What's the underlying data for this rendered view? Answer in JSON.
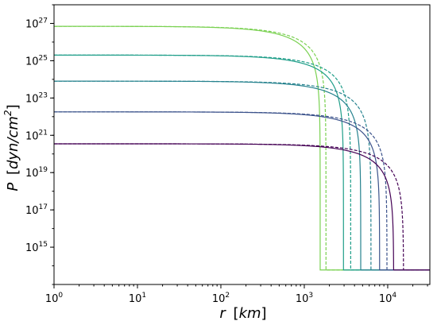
{
  "chart_data": {
    "type": "line",
    "xlabel_parts": [
      "r",
      "[",
      "km",
      "]"
    ],
    "ylabel_parts": [
      "P",
      "[",
      "dyn/cm",
      "2",
      "]"
    ],
    "x_scale": "log",
    "y_scale": "log",
    "xlim": [
      1,
      32000
    ],
    "ylim": [
      10000000000000.0,
      1e+28
    ],
    "grid": false,
    "x_ticks": [
      {
        "value": 1,
        "base": "10",
        "exp": "0"
      },
      {
        "value": 10,
        "base": "10",
        "exp": "1"
      },
      {
        "value": 100,
        "base": "10",
        "exp": "2"
      },
      {
        "value": 1000,
        "base": "10",
        "exp": "3"
      },
      {
        "value": 10000,
        "base": "10",
        "exp": "4"
      }
    ],
    "y_ticks": [
      {
        "value": 1000000000000000.0,
        "base": "10",
        "exp": "15"
      },
      {
        "value": 1e+17,
        "base": "10",
        "exp": "17"
      },
      {
        "value": 1e+19,
        "base": "10",
        "exp": "19"
      },
      {
        "value": 1e+21,
        "base": "10",
        "exp": "21"
      },
      {
        "value": 1e+23,
        "base": "10",
        "exp": "23"
      },
      {
        "value": 1e+25,
        "base": "10",
        "exp": "25"
      },
      {
        "value": 1e+27,
        "base": "10",
        "exp": "27"
      }
    ],
    "floor_pressure": 60000000000000.0,
    "series": [
      {
        "id": "s1",
        "style": "solid",
        "color": "#7ad151",
        "central_pressure": 7e+26,
        "radius": 1550,
        "knee": 700
      },
      {
        "id": "s2",
        "style": "dashed",
        "color": "#7ad151",
        "central_pressure": 7e+26,
        "radius": 1820,
        "knee": 850
      },
      {
        "id": "s3",
        "style": "solid",
        "color": "#1f9e89",
        "central_pressure": 2e+25,
        "radius": 2950,
        "knee": 1800
      },
      {
        "id": "s4",
        "style": "dashed",
        "color": "#1f9e89",
        "central_pressure": 2e+25,
        "radius": 3600,
        "knee": 2200
      },
      {
        "id": "s5",
        "style": "solid",
        "color": "#26828e",
        "central_pressure": 8e+23,
        "radius": 4750,
        "knee": 3000
      },
      {
        "id": "s6",
        "style": "dashed",
        "color": "#26828e",
        "central_pressure": 8e+23,
        "radius": 6300,
        "knee": 3800
      },
      {
        "id": "s7",
        "style": "solid",
        "color": "#3b528b",
        "central_pressure": 1.8e+22,
        "radius": 8000,
        "knee": 5000
      },
      {
        "id": "s8",
        "style": "dashed",
        "color": "#3b528b",
        "central_pressure": 1.8e+22,
        "radius": 9800,
        "knee": 6000
      },
      {
        "id": "s9",
        "style": "solid",
        "color": "#440154",
        "central_pressure": 3.5e+20,
        "radius": 11800,
        "knee": 7000
      },
      {
        "id": "s10",
        "style": "dashed",
        "color": "#440154",
        "central_pressure": 3.5e+20,
        "radius": 15500,
        "knee": 9000
      }
    ]
  }
}
